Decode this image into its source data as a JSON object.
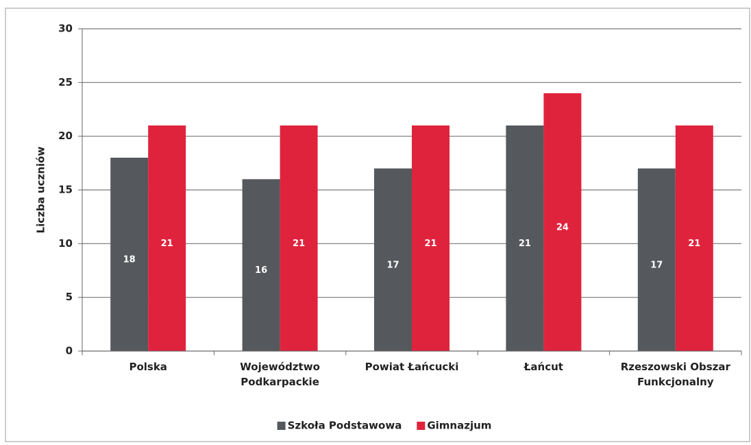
{
  "chart_data": {
    "type": "bar",
    "y_axis_label": "Liczba uczniów",
    "categories": [
      "Polska",
      "Województwo Podkarpackie",
      "Powiat Łańcucki",
      "Łańcut",
      "Rzeszowski Obszar Funkcjonalny"
    ],
    "series": [
      {
        "name": "Szkoła Podstawowa",
        "color": "#55585c",
        "values": [
          18,
          16,
          17,
          21,
          17
        ]
      },
      {
        "name": "Gimnazjum",
        "color": "#e0233c",
        "values": [
          21,
          21,
          21,
          24,
          21
        ]
      }
    ],
    "ylim": [
      0,
      30
    ],
    "yticks": [
      0,
      5,
      10,
      15,
      20,
      25,
      30
    ],
    "grid": true,
    "legend": "bottom"
  }
}
